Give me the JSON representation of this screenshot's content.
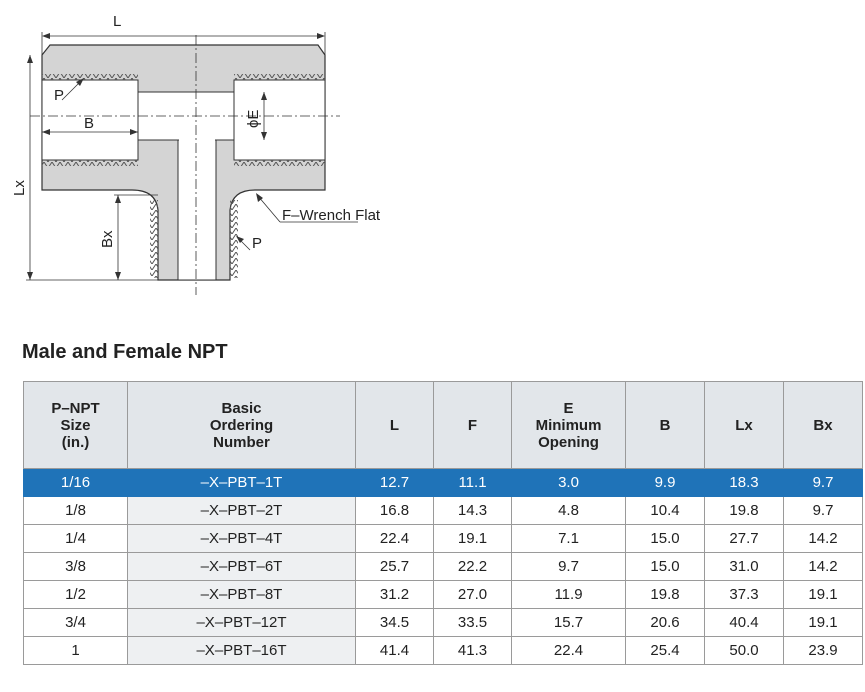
{
  "drawing": {
    "labels": {
      "L": "L",
      "P_top": "P",
      "B": "B",
      "E": "ϕE",
      "Lx": "Lx",
      "Bx": "Bx",
      "wrench": "F–Wrench Flat",
      "P_bottom": "P"
    }
  },
  "section_title": "Male and Female NPT",
  "table": {
    "headers": [
      [
        "P–NPT",
        "Size",
        "(in.)"
      ],
      [
        "Basic",
        "Ordering",
        "Number"
      ],
      [
        "L"
      ],
      [
        "F"
      ],
      [
        "E",
        "Minimum",
        "Opening"
      ],
      [
        "B"
      ],
      [
        "Lx"
      ],
      [
        "Bx"
      ]
    ],
    "rows": [
      [
        "1/16",
        "–X–PBT–1T",
        "12.7",
        "11.1",
        "3.0",
        "9.9",
        "18.3",
        "9.7"
      ],
      [
        "1/8",
        "–X–PBT–2T",
        "16.8",
        "14.3",
        "4.8",
        "10.4",
        "19.8",
        "9.7"
      ],
      [
        "1/4",
        "–X–PBT–4T",
        "22.4",
        "19.1",
        "7.1",
        "15.0",
        "27.7",
        "14.2"
      ],
      [
        "3/8",
        "–X–PBT–6T",
        "25.7",
        "22.2",
        "9.7",
        "15.0",
        "31.0",
        "14.2"
      ],
      [
        "1/2",
        "–X–PBT–8T",
        "31.2",
        "27.0",
        "11.9",
        "19.8",
        "37.3",
        "19.1"
      ],
      [
        "3/4",
        "–X–PBT–12T",
        "34.5",
        "33.5",
        "15.7",
        "20.6",
        "40.4",
        "19.1"
      ],
      [
        "1",
        "–X–PBT–16T",
        "41.4",
        "41.3",
        "22.4",
        "25.4",
        "50.0",
        "23.9"
      ]
    ],
    "highlight_row": 0,
    "highlight_color": "#1f73b8"
  }
}
